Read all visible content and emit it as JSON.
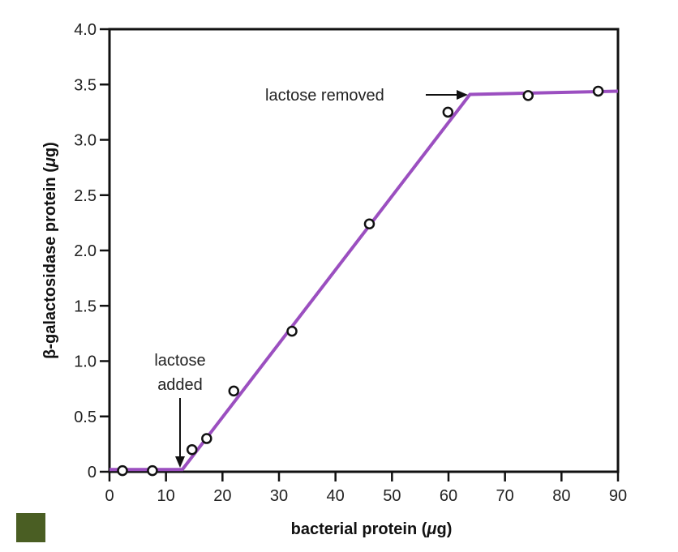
{
  "chart_data": {
    "type": "line",
    "title": "",
    "xlabel": "bacterial protein (μg)",
    "ylabel": "β-galactosidase protein (μg)",
    "xlim": [
      0,
      90
    ],
    "ylim": [
      0,
      4.0
    ],
    "x_ticks": [
      0,
      10,
      20,
      30,
      40,
      50,
      60,
      70,
      80,
      90
    ],
    "x_tick_labels": [
      "0",
      "10",
      "20",
      "30",
      "40",
      "50",
      "60",
      "70",
      "80",
      "90"
    ],
    "y_ticks": [
      0,
      0.5,
      1.0,
      1.5,
      2.0,
      2.5,
      3.0,
      3.5,
      4.0
    ],
    "y_tick_labels": [
      "0",
      "0.5",
      "1.0",
      "1.5",
      "2.0",
      "2.5",
      "3.0",
      "3.5",
      "4.0"
    ],
    "grid": false,
    "legend": null,
    "series": [
      {
        "name": "fitted line",
        "kind": "line",
        "color": "#9b4fc0",
        "x": [
          0,
          12.9,
          63.8,
          90
        ],
        "y": [
          0.02,
          0.02,
          3.41,
          3.44
        ]
      },
      {
        "name": "measurements",
        "kind": "scatter",
        "marker": "open-circle",
        "x": [
          2.3,
          7.6,
          14.6,
          17.2,
          22.0,
          32.3,
          46.0,
          59.9,
          74.1,
          86.5
        ],
        "y": [
          0.01,
          0.01,
          0.2,
          0.3,
          0.73,
          1.27,
          2.24,
          3.25,
          3.4,
          3.44
        ]
      }
    ],
    "annotations": [
      {
        "text_lines": [
          "lactose",
          "added"
        ],
        "arrow": "down",
        "x": 12.9,
        "y": 0.02
      },
      {
        "text_lines": [
          "lactose removed"
        ],
        "arrow": "right",
        "x": 63.8,
        "y": 3.41
      }
    ]
  },
  "labels": {
    "xlabel_main": "bacterial protein (",
    "xlabel_mu": "μ",
    "xlabel_end": "g)",
    "ylabel_main": "β-galactosidase protein (",
    "ylabel_mu": "μ",
    "ylabel_end": "g)",
    "annot_added_1": "lactose",
    "annot_added_2": "added",
    "annot_removed": "lactose removed"
  },
  "decor": {
    "corner_square_color": "#4a5e23"
  }
}
